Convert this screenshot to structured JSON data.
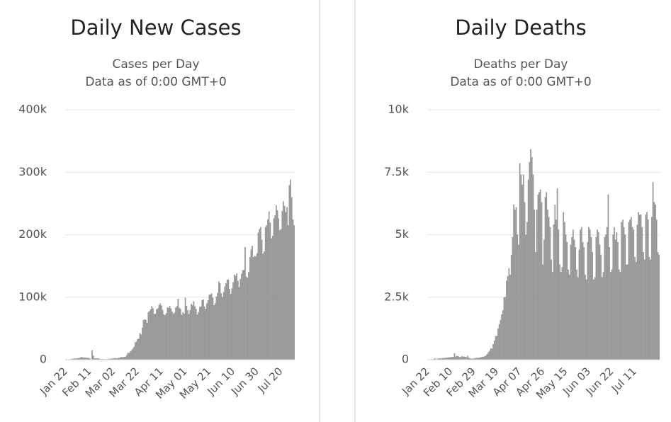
{
  "chart_data": [
    {
      "type": "bar",
      "title": "Daily New Cases",
      "subtitle": [
        "Cases per Day",
        "Data as of 0:00 GMT+0"
      ],
      "color": "#999999",
      "grid": true,
      "ylim": [
        0,
        400000
      ],
      "yticks": [
        0,
        {
          "value": 100000,
          "label": "100k"
        },
        {
          "value": 200000,
          "label": "200k"
        },
        {
          "value": 300000,
          "label": "300k"
        },
        {
          "value": 400000,
          "label": "400k"
        }
      ],
      "categories": [
        "Jan 22",
        null,
        null,
        null,
        null,
        null,
        null,
        null,
        null,
        null,
        null,
        null,
        null,
        null,
        null,
        null,
        null,
        null,
        null,
        null,
        "Feb 11",
        null,
        null,
        null,
        null,
        null,
        null,
        null,
        null,
        null,
        null,
        null,
        null,
        null,
        null,
        null,
        null,
        null,
        null,
        null,
        "Mar 02",
        null,
        null,
        null,
        null,
        null,
        null,
        null,
        null,
        null,
        null,
        null,
        null,
        null,
        null,
        null,
        null,
        null,
        null,
        null,
        "Mar 22",
        null,
        null,
        null,
        null,
        null,
        null,
        null,
        null,
        null,
        null,
        null,
        null,
        null,
        null,
        null,
        null,
        null,
        null,
        null,
        "Apr 11",
        null,
        null,
        null,
        null,
        null,
        null,
        null,
        null,
        null,
        null,
        null,
        null,
        null,
        null,
        null,
        null,
        null,
        null,
        null,
        "May 01",
        null,
        null,
        null,
        null,
        null,
        null,
        null,
        null,
        null,
        null,
        null,
        null,
        null,
        null,
        null,
        null,
        null,
        null,
        null,
        "May 21",
        null,
        null,
        null,
        null,
        null,
        null,
        null,
        null,
        null,
        null,
        null,
        null,
        null,
        null,
        null,
        null,
        null,
        null,
        null,
        "Jun 10",
        null,
        null,
        null,
        null,
        null,
        null,
        null,
        null,
        null,
        null,
        null,
        null,
        null,
        null,
        null,
        null,
        null,
        null,
        null,
        "Jun 30",
        null,
        null,
        null,
        null,
        null,
        null,
        null,
        null,
        null,
        null,
        null,
        null,
        null,
        null,
        null,
        null,
        null,
        null,
        null,
        "Jul 20",
        null,
        null,
        null,
        null,
        null,
        null,
        null,
        null,
        null,
        null,
        null
      ],
      "values": [
        600,
        100,
        300,
        500,
        700,
        800,
        1500,
        1800,
        1700,
        2100,
        2100,
        2600,
        3200,
        3900,
        3700,
        3200,
        3500,
        2700,
        3000,
        2600,
        2000,
        400,
        15100,
        6500,
        2100,
        2000,
        2000,
        1900,
        1800,
        600,
        1000,
        1000,
        600,
        700,
        500,
        800,
        900,
        1300,
        1400,
        1700,
        1800,
        2400,
        1900,
        2200,
        2700,
        2900,
        3900,
        4000,
        3800,
        4400,
        4700,
        7300,
        10800,
        10600,
        12900,
        14800,
        17400,
        20100,
        27500,
        28900,
        32500,
        33500,
        42100,
        40200,
        51000,
        63200,
        64200,
        63500,
        58900,
        75900,
        77600,
        80500,
        85200,
        82000,
        72800,
        73300,
        80600,
        82000,
        87200,
        89900,
        86600,
        79700,
        72200,
        71000,
        74200,
        83400,
        82800,
        85900,
        81900,
        76600,
        73400,
        75500,
        83400,
        85600,
        97200,
        82800,
        81000,
        71500,
        76000,
        73400,
        99000,
        86000,
        79000,
        73000,
        79000,
        89000,
        87000,
        93000,
        85000,
        81000,
        72000,
        76000,
        84000,
        85000,
        95000,
        96000,
        85000,
        81000,
        90000,
        95000,
        104000,
        104000,
        106000,
        99000,
        87000,
        90000,
        101000,
        107000,
        125000,
        122000,
        106000,
        100000,
        108000,
        117000,
        122000,
        128000,
        128000,
        113000,
        105000,
        114000,
        124000,
        136000,
        134000,
        138000,
        126000,
        116000,
        129000,
        137000,
        143000,
        143000,
        180000,
        133000,
        131000,
        140000,
        164000,
        176000,
        182000,
        164000,
        166000,
        165000,
        170000,
        203000,
        209000,
        212000,
        192000,
        170000,
        173000,
        212000,
        215000,
        224000,
        237000,
        219000,
        194000,
        198000,
        226000,
        231000,
        247000,
        239000,
        226000,
        207000,
        209000,
        238000,
        253000,
        246000,
        236000,
        244000,
        215000,
        279000,
        288000,
        260000,
        224000,
        215000
      ]
    },
    {
      "type": "bar",
      "title": "Daily Deaths",
      "subtitle": [
        "Deaths per Day",
        "Data as of 0:00 GMT+0"
      ],
      "color": "#999999",
      "grid": true,
      "ylim": [
        0,
        10000
      ],
      "yticks": [
        0,
        {
          "value": 2500,
          "label": "2.5k"
        },
        {
          "value": 5000,
          "label": "5k"
        },
        {
          "value": 7500,
          "label": "7.5k"
        },
        {
          "value": 10000,
          "label": "10k"
        }
      ],
      "categories": [
        "Jan 22",
        null,
        null,
        null,
        null,
        null,
        null,
        null,
        null,
        null,
        null,
        null,
        null,
        null,
        null,
        null,
        null,
        null,
        null,
        "Feb 10",
        null,
        null,
        null,
        null,
        null,
        null,
        null,
        null,
        null,
        null,
        null,
        null,
        null,
        null,
        null,
        null,
        null,
        null,
        "Feb 29",
        null,
        null,
        null,
        null,
        null,
        null,
        null,
        null,
        null,
        null,
        null,
        null,
        null,
        null,
        null,
        null,
        null,
        null,
        "Mar 19",
        null,
        null,
        null,
        null,
        null,
        null,
        null,
        null,
        null,
        null,
        null,
        null,
        null,
        null,
        null,
        null,
        null,
        null,
        "Apr 07",
        null,
        null,
        null,
        null,
        null,
        null,
        null,
        null,
        null,
        null,
        null,
        null,
        null,
        null,
        null,
        null,
        null,
        null,
        "Apr 26",
        null,
        null,
        null,
        null,
        null,
        null,
        null,
        null,
        null,
        null,
        null,
        null,
        null,
        null,
        null,
        null,
        null,
        null,
        "May 15",
        null,
        null,
        null,
        null,
        null,
        null,
        null,
        null,
        null,
        null,
        null,
        null,
        null,
        null,
        null,
        null,
        null,
        null,
        "Jun 03",
        null,
        null,
        null,
        null,
        null,
        null,
        null,
        null,
        null,
        null,
        null,
        null,
        null,
        null,
        null,
        null,
        null,
        null,
        "Jun 22",
        null,
        null,
        null,
        null,
        null,
        null,
        null,
        null,
        null,
        null,
        null,
        null,
        null,
        null,
        null,
        null,
        null,
        null,
        "Jul 11",
        null,
        null,
        null,
        null,
        null,
        null,
        null,
        null,
        null,
        null,
        null,
        null,
        null,
        null,
        null,
        null,
        null,
        null,
        null,
        null
      ],
      "values": [
        0,
        1,
        8,
        16,
        14,
        26,
        49,
        2,
        38,
        43,
        46,
        45,
        57,
        64,
        66,
        73,
        73,
        86,
        89,
        97,
        108,
        97,
        254,
        121,
        143,
        142,
        105,
        98,
        136,
        115,
        118,
        109,
        97,
        150,
        71,
        52,
        29,
        44,
        37,
        58,
        67,
        73,
        66,
        84,
        98,
        112,
        103,
        138,
        157,
        224,
        297,
        345,
        456,
        432,
        622,
        757,
        943,
        950,
        1236,
        1410,
        1588,
        1811,
        1967,
        2491,
        2508,
        3155,
        3341,
        3664,
        3400,
        4190,
        4900,
        6200,
        6000,
        6100,
        5000,
        4600,
        7850,
        7400,
        7000,
        7400,
        6300,
        5000,
        5500,
        7200,
        7900,
        8420,
        8100,
        7400,
        6000,
        4300,
        6000,
        6600,
        6700,
        6800,
        6300,
        3800,
        4800,
        6500,
        6700,
        6000,
        5700,
        5300,
        4000,
        3500,
        5400,
        6200,
        5600,
        6850,
        5200,
        3800,
        3500,
        3700,
        5900,
        5500,
        5000,
        4700,
        3600,
        3400,
        4600,
        4900,
        5200,
        4800,
        4500,
        3600,
        3300,
        4400,
        5200,
        5300,
        4700,
        4500,
        3400,
        3200,
        4700,
        5300,
        5200,
        4900,
        4300,
        3200,
        3300,
        4900,
        5200,
        5100,
        4600,
        4200,
        3300,
        3500,
        4900,
        5000,
        5300,
        6600,
        4500,
        3500,
        3600,
        5000,
        5300,
        4800,
        5100,
        4700,
        3600,
        3500,
        5500,
        5600,
        5300,
        5000,
        3800,
        3800,
        5500,
        5600,
        5700,
        5300,
        5200,
        4100,
        3900,
        5400,
        5900,
        5800,
        5800,
        5300,
        4300,
        4000,
        5800,
        5900,
        5600,
        4100,
        4000,
        5700,
        7100,
        6300,
        6200,
        5600,
        4300,
        4200
      ]
    }
  ]
}
